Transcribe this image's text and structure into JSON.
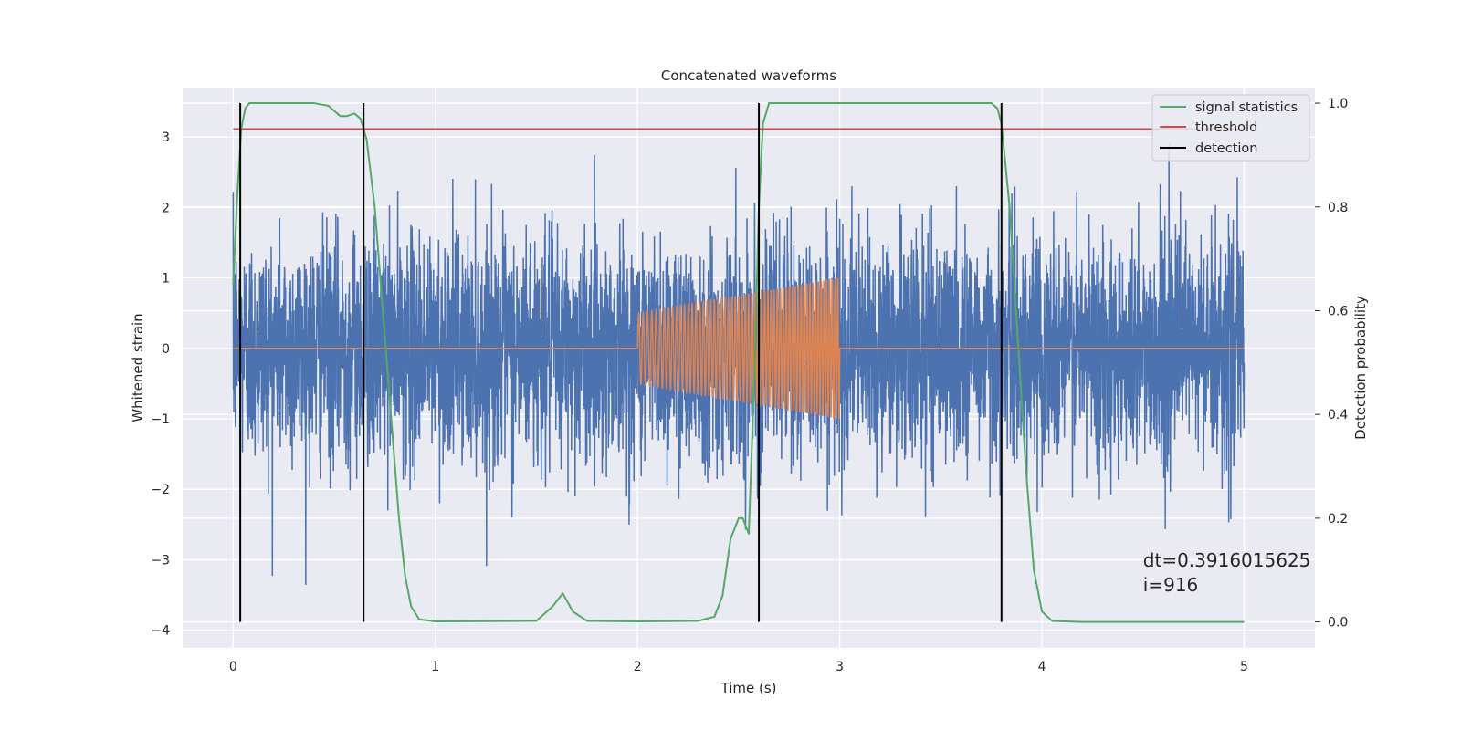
{
  "chart_data": {
    "type": "line",
    "title": "Concatenated waveforms",
    "xlabel": "Time (s)",
    "ylabel": "Whitened strain",
    "ylabel_right": "Detection probability",
    "xlim": [
      -0.25,
      5.35
    ],
    "ylim": [
      -4.25,
      3.7
    ],
    "ylim_right": [
      -0.05,
      1.03
    ],
    "xticks": [
      0,
      1,
      2,
      3,
      4,
      5
    ],
    "yticks": [
      -4,
      -3,
      -2,
      -1,
      0,
      1,
      2,
      3
    ],
    "yticks_right": [
      0.0,
      0.2,
      0.4,
      0.6,
      0.8,
      1.0
    ],
    "grid": true,
    "legend_position": "upper-right",
    "legend": [
      {
        "label": "signal statistics",
        "color": "#55a868"
      },
      {
        "label": "threshold",
        "color": "#c44e52"
      },
      {
        "label": "detection",
        "color": "#000000"
      }
    ],
    "series": [
      {
        "kind": "noise",
        "color": "#4c72b0",
        "x_range": [
          0,
          5
        ],
        "approx_sigma": 0.8,
        "approx_peak": 3.3
      },
      {
        "kind": "chirp",
        "color": "#dd8452",
        "x_range": [
          2,
          3
        ],
        "amplitude_start": 0.5,
        "amplitude_end": 1.0,
        "zero_elsewhere": [
          0,
          5
        ]
      },
      {
        "name": "signal statistics",
        "color": "#55a868",
        "axis": "right",
        "x": [
          0,
          0.02,
          0.04,
          0.06,
          0.08,
          0.12,
          0.2,
          0.3,
          0.4,
          0.47,
          0.5,
          0.53,
          0.56,
          0.6,
          0.63,
          0.66,
          0.7,
          0.74,
          0.78,
          0.82,
          0.85,
          0.88,
          0.92,
          1.0,
          1.5,
          1.58,
          1.63,
          1.68,
          1.75,
          2.0,
          2.3,
          2.38,
          2.42,
          2.46,
          2.5,
          2.52,
          2.55,
          2.58,
          2.6,
          2.62,
          2.65,
          2.7,
          3.0,
          3.5,
          3.75,
          3.78,
          3.8,
          3.84,
          3.88,
          3.92,
          3.96,
          4.0,
          4.05,
          4.2,
          5.0
        ],
        "y": [
          0.65,
          0.82,
          0.95,
          0.99,
          1.0,
          1.0,
          1.0,
          1.0,
          1.0,
          0.995,
          0.985,
          0.975,
          0.975,
          0.98,
          0.97,
          0.93,
          0.8,
          0.6,
          0.4,
          0.2,
          0.09,
          0.03,
          0.005,
          0.001,
          0.002,
          0.03,
          0.055,
          0.02,
          0.002,
          0.001,
          0.002,
          0.01,
          0.05,
          0.16,
          0.2,
          0.2,
          0.17,
          0.5,
          0.8,
          0.96,
          1.0,
          1.0,
          1.0,
          1.0,
          1.0,
          0.99,
          0.96,
          0.8,
          0.55,
          0.3,
          0.1,
          0.02,
          0.002,
          0.0,
          0.0
        ]
      },
      {
        "name": "threshold",
        "color": "#c44e52",
        "axis": "right",
        "x": [
          0,
          5.0
        ],
        "y": [
          0.95,
          0.95
        ]
      },
      {
        "name": "detection",
        "color": "#000000",
        "axis": "right",
        "kind": "vlines",
        "x": [
          0.035,
          0.645,
          2.6,
          3.8
        ],
        "y_range": [
          0.0,
          1.0
        ]
      }
    ],
    "annotations": [
      {
        "text": "dt=0.3916015625",
        "x": 4.5,
        "y": -3.1
      },
      {
        "text": " i=916",
        "x": 4.5,
        "y": -3.45
      }
    ]
  }
}
